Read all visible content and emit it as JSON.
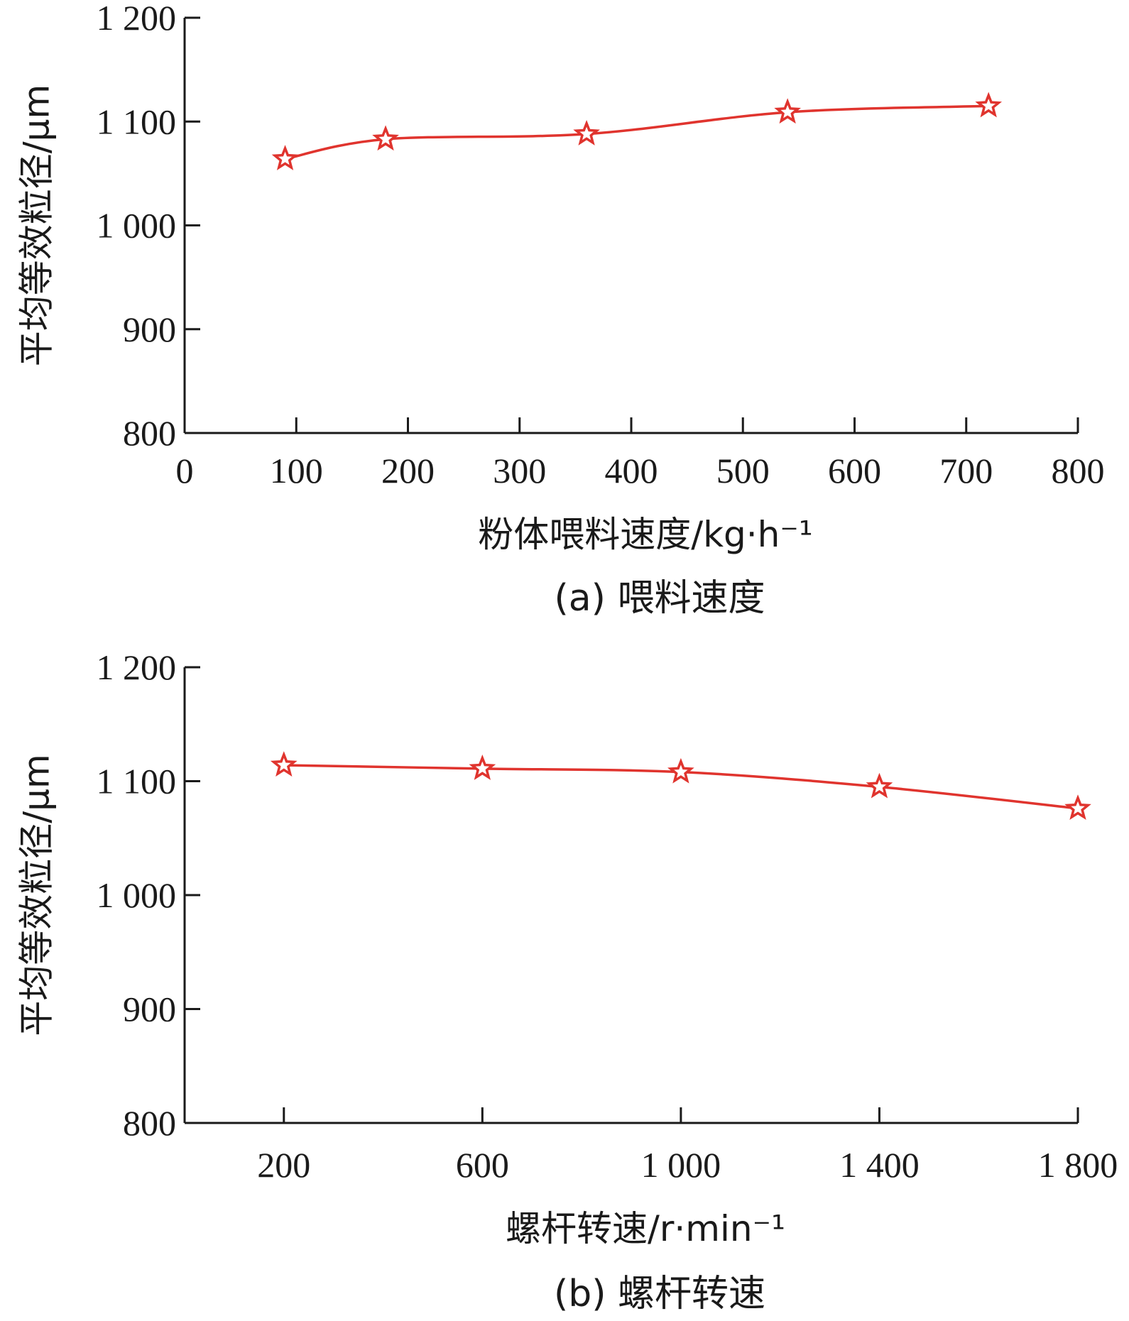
{
  "colors": {
    "series": "#e0342e",
    "axis": "#1a1a1a"
  },
  "chart_data": [
    {
      "type": "line",
      "caption": "(a) 喂料速度",
      "xlabel": "粉体喂料速度/kg·h⁻¹",
      "ylabel": "平均等效粒径/μm",
      "xlim": [
        0,
        800
      ],
      "ylim": [
        800,
        1200
      ],
      "xticks": [
        0,
        100,
        200,
        300,
        400,
        500,
        600,
        700,
        800
      ],
      "xtick_labels": [
        "0",
        "100",
        "200",
        "300",
        "400",
        "500",
        "600",
        "700",
        "800"
      ],
      "yticks": [
        800,
        900,
        1000,
        1100,
        1200
      ],
      "ytick_labels": [
        "800",
        "900",
        "1 000",
        "1 100",
        "1 200"
      ],
      "marker": "star",
      "series": [
        {
          "x": [
            90,
            180,
            360,
            540,
            720
          ],
          "y": [
            1064,
            1083,
            1088,
            1109,
            1115
          ]
        }
      ]
    },
    {
      "type": "line",
      "caption": "(b) 螺杆转速",
      "xlabel": "螺杆转速/r·min⁻¹",
      "ylabel": "平均等效粒径/μm",
      "xlim": [
        0,
        1800
      ],
      "ylim": [
        800,
        1200
      ],
      "xticks": [
        200,
        600,
        1000,
        1400,
        1800
      ],
      "xtick_labels": [
        "200",
        "600",
        "1 000",
        "1 400",
        "1 800"
      ],
      "yticks": [
        800,
        900,
        1000,
        1100,
        1200
      ],
      "ytick_labels": [
        "800",
        "900",
        "1 000",
        "1 100",
        "1 200"
      ],
      "marker": "star",
      "series": [
        {
          "x": [
            200,
            600,
            1000,
            1400,
            1800
          ],
          "y": [
            1114,
            1111,
            1108,
            1095,
            1076
          ]
        }
      ]
    }
  ]
}
